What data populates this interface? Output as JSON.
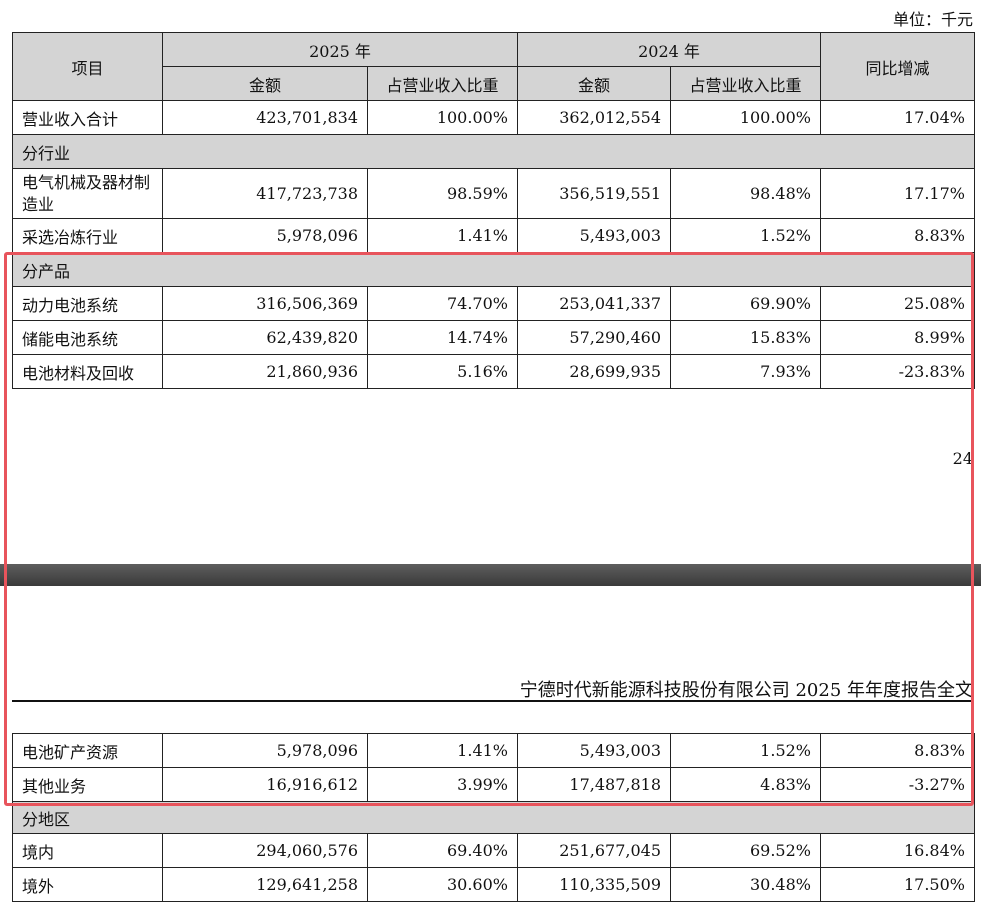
{
  "unit_label": "单位：千元",
  "header": {
    "item": "项目",
    "year_2025": "2025 年",
    "year_2024": "2024 年",
    "amount": "金额",
    "share": "占营业收入比重",
    "yoy": "同比增减"
  },
  "table1": {
    "total": {
      "label": "营业收入合计",
      "v2025": "423,701,834",
      "p2025": "100.00%",
      "v2024": "362,012,554",
      "p2024": "100.00%",
      "yoy": "17.04%"
    },
    "section_industry": "分行业",
    "industry_rows": [
      {
        "label": "电气机械及器材制造业",
        "v2025": "417,723,738",
        "p2025": "98.59%",
        "v2024": "356,519,551",
        "p2024": "98.48%",
        "yoy": "17.17%"
      },
      {
        "label": "采选冶炼行业",
        "v2025": "5,978,096",
        "p2025": "1.41%",
        "v2024": "5,493,003",
        "p2024": "1.52%",
        "yoy": "8.83%"
      }
    ],
    "section_product": "分产品",
    "product_rows": [
      {
        "label": "动力电池系统",
        "v2025": "316,506,369",
        "p2025": "74.70%",
        "v2024": "253,041,337",
        "p2024": "69.90%",
        "yoy": "25.08%"
      },
      {
        "label": "储能电池系统",
        "v2025": "62,439,820",
        "p2025": "14.74%",
        "v2024": "57,290,460",
        "p2024": "15.83%",
        "yoy": "8.99%"
      },
      {
        "label": "电池材料及回收",
        "v2025": "21,860,936",
        "p2025": "5.16%",
        "v2024": "28,699,935",
        "p2024": "7.93%",
        "yoy": "-23.83%"
      }
    ]
  },
  "page_number": "24",
  "report_title": "宁德时代新能源科技股份有限公司 2025 年年度报告全文",
  "table2": {
    "product_rows": [
      {
        "label": "电池矿产资源",
        "v2025": "5,978,096",
        "p2025": "1.41%",
        "v2024": "5,493,003",
        "p2024": "1.52%",
        "yoy": "8.83%"
      },
      {
        "label": "其他业务",
        "v2025": "16,916,612",
        "p2025": "3.99%",
        "v2024": "17,487,818",
        "p2024": "4.83%",
        "yoy": "-3.27%"
      }
    ],
    "section_region": "分地区",
    "region_rows": [
      {
        "label": "境内",
        "v2025": "294,060,576",
        "p2025": "69.40%",
        "v2024": "251,677,045",
        "p2024": "69.52%",
        "yoy": "16.84%"
      },
      {
        "label": "境外",
        "v2025": "129,641,258",
        "p2025": "30.60%",
        "v2024": "110,335,509",
        "p2024": "30.48%",
        "yoy": "17.50%"
      }
    ]
  },
  "highlight_color": "#e8545c"
}
